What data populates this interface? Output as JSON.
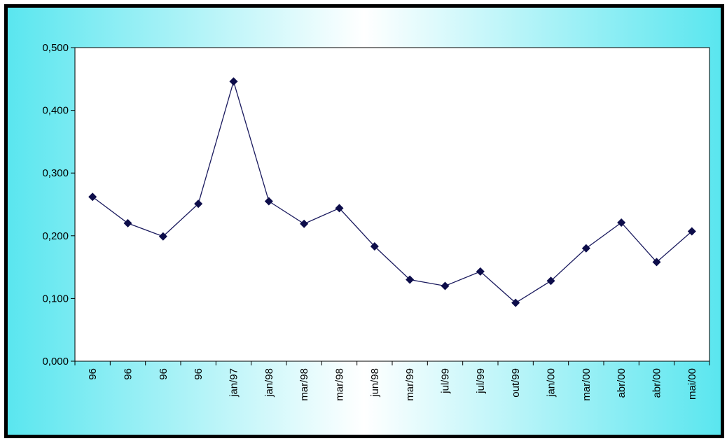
{
  "chart_data": {
    "type": "line",
    "categories": [
      "96",
      "96",
      "96",
      "96",
      "jan/97",
      "jan/98",
      "mar/98",
      "mar/98",
      "jun/98",
      "mar/99",
      "jul/99",
      "jul/99",
      "out/99",
      "jan/00",
      "mar/00",
      "abr/00",
      "abr/00",
      "mai/00"
    ],
    "series": [
      {
        "values": [
          0.262,
          0.22,
          0.199,
          0.251,
          0.446,
          0.255,
          0.219,
          0.244,
          0.183,
          0.13,
          0.12,
          0.143,
          0.093,
          0.128,
          0.18,
          0.221,
          0.158,
          0.207
        ]
      }
    ],
    "ylim": [
      0,
      0.5
    ],
    "yticks": [
      "0,000",
      "0,100",
      "0,200",
      "0,300",
      "0,400",
      "0,500"
    ],
    "grid": false,
    "legend": "none",
    "colors": {
      "line": "#1a1a5e",
      "marker": "#0d0d4a",
      "plot_bg": "#ffffff",
      "frame_border": "#000000",
      "bg_accent": "#5ae6ef"
    }
  }
}
